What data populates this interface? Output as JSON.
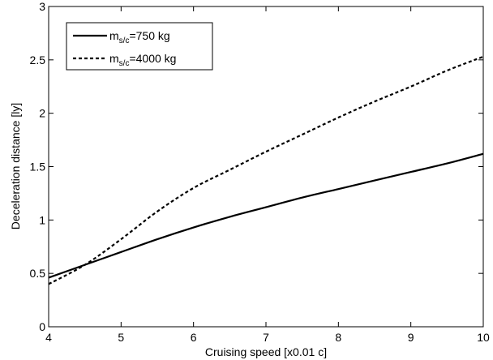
{
  "chart_data": {
    "type": "line",
    "title": "",
    "xlabel": "Cruising speed [x0.01 c]",
    "ylabel": "Deceleration distance [ly]",
    "xlim": [
      4,
      10
    ],
    "ylim": [
      0,
      3
    ],
    "xticks": [
      4,
      5,
      6,
      7,
      8,
      9,
      10
    ],
    "yticks": [
      0,
      0.5,
      1,
      1.5,
      2,
      2.5,
      3
    ],
    "xtick_labels": [
      "4",
      "5",
      "6",
      "7",
      "8",
      "9",
      "10"
    ],
    "ytick_labels": [
      "0",
      "0.5",
      "1",
      "1.5",
      "2",
      "2.5",
      "3"
    ],
    "grid": false,
    "legend_position": "top-left",
    "series": [
      {
        "name_main": "m",
        "name_sub": "s/c",
        "name_rest": "=750 kg",
        "style": "solid",
        "color": "#000000",
        "x": [
          4.0,
          4.5,
          5.0,
          5.5,
          6.0,
          6.5,
          7.0,
          7.5,
          8.0,
          8.5,
          9.0,
          9.5,
          10.0
        ],
        "y": [
          0.46,
          0.58,
          0.7,
          0.82,
          0.93,
          1.03,
          1.12,
          1.21,
          1.29,
          1.37,
          1.45,
          1.53,
          1.62
        ]
      },
      {
        "name_main": "m",
        "name_sub": "s/c",
        "name_rest": "=4000 kg",
        "style": "dashed",
        "color": "#000000",
        "x": [
          4.0,
          4.5,
          5.0,
          5.5,
          6.0,
          6.5,
          7.0,
          7.5,
          8.0,
          8.5,
          9.0,
          9.5,
          10.0
        ],
        "y": [
          0.4,
          0.58,
          0.82,
          1.08,
          1.3,
          1.47,
          1.64,
          1.8,
          1.96,
          2.11,
          2.25,
          2.4,
          2.53
        ]
      }
    ]
  }
}
